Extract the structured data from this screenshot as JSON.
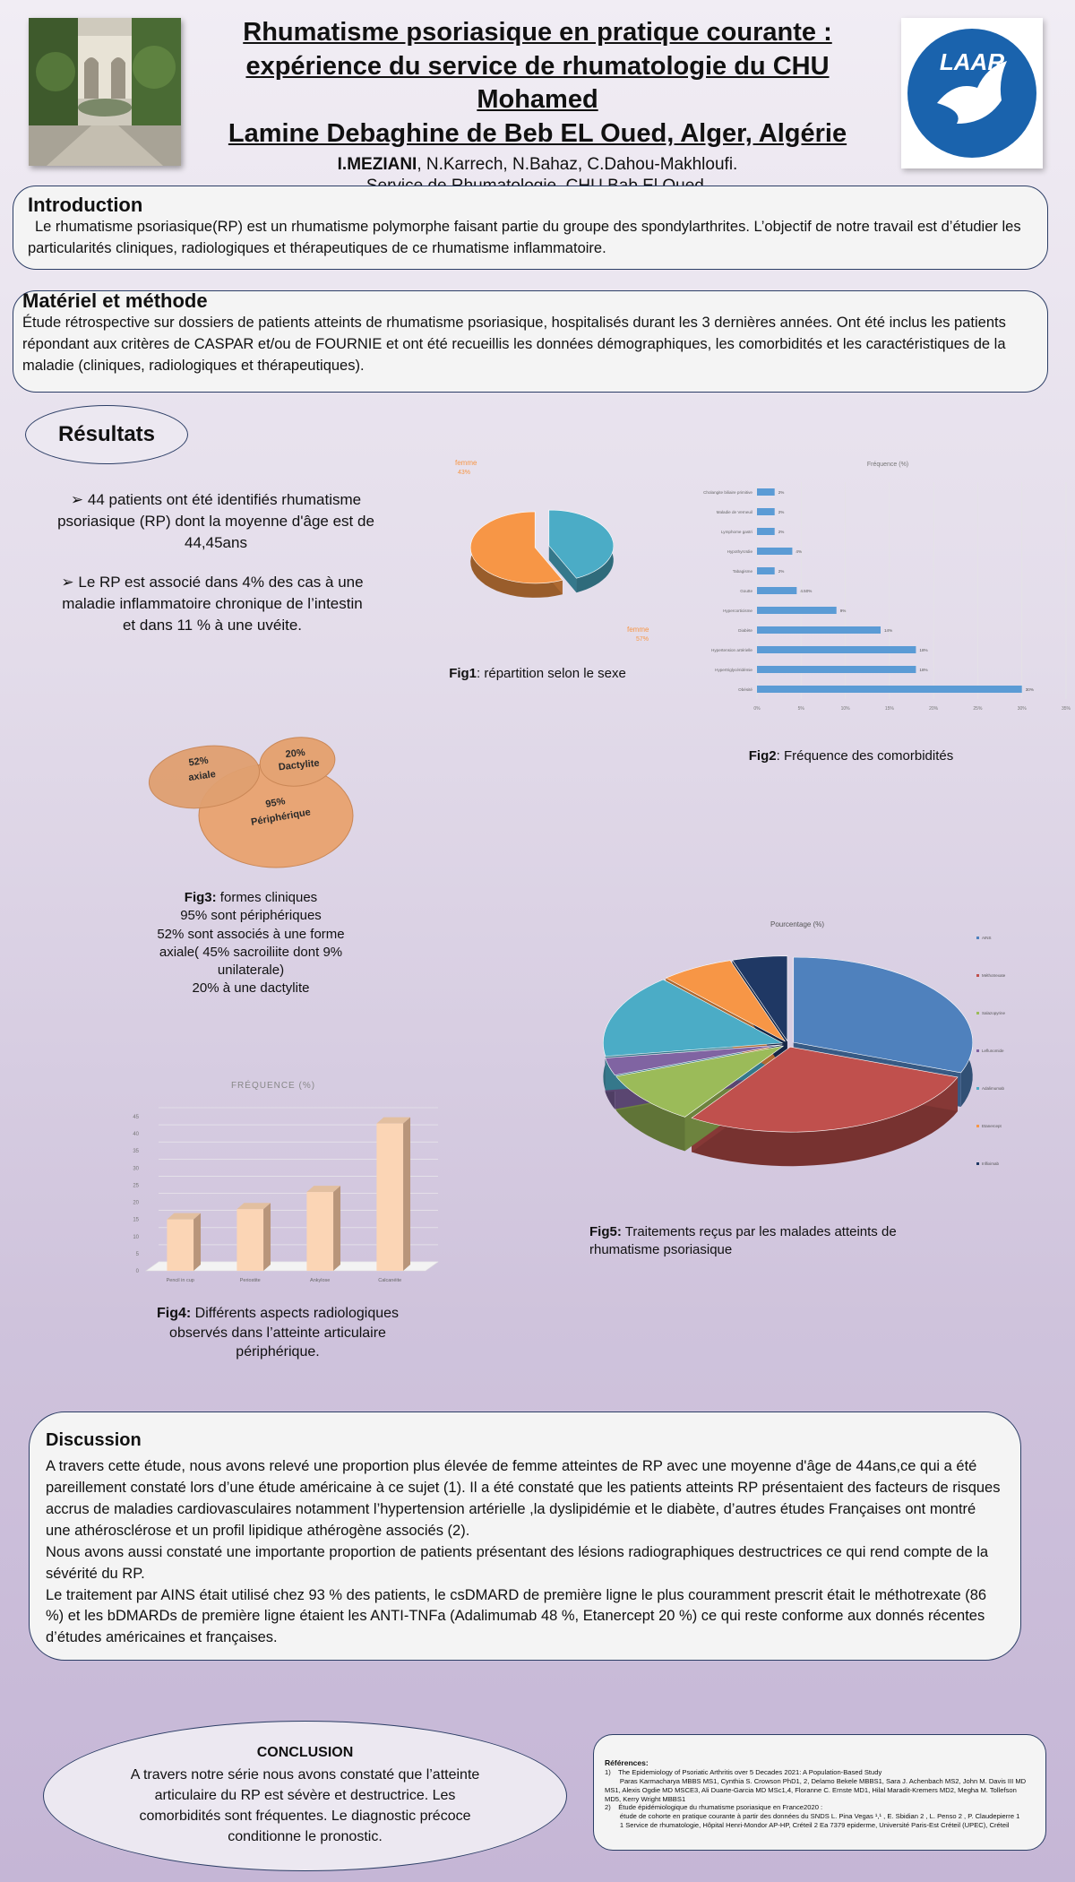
{
  "header": {
    "title_lines": [
      "Rhumatisme psoriasique en pratique courante :",
      "expérience du service de rhumatologie du CHU Mohamed",
      "Lamine Debaghine de Beb  EL Oued, Alger, Algérie"
    ],
    "first_author": "I.MEZIANI",
    "other_authors": ", N.Karrech, N.Bahaz, C.Dahou-Makhloufi.",
    "affiliation": "Service de Rhumatologie, CHU Bab El Oued.",
    "logo_text": "LAAR"
  },
  "introduction": {
    "title": "Introduction",
    "text": "Le rhumatisme psoriasique(RP) est un rhumatisme polymorphe faisant partie du groupe des spondylarthrites. L’objectif de notre travail est d’étudier les particularités cliniques, radiologiques et thérapeutiques de ce rhumatisme inflammatoire."
  },
  "methods": {
    "title": "Matériel et méthode",
    "text": "Étude rétrospective sur dossiers de patients atteints de rhumatisme psoriasique, hospitalisés durant les 3 dernières  années. Ont été inclus les patients répondant aux critères de CASPAR et/ou de FOURNIE et ont été recueillis les données démographiques, les comorbidités et les caractéristiques de la maladie (cliniques, radiologiques et thérapeutiques)."
  },
  "results": {
    "title": "Résultats",
    "bullet_1": "44 patients ont été identifiés rhumatisme psoriasique (RP)  dont la moyenne d'âge est de 44,45ans",
    "bullet_2": "Le RP est associé dans 4% des cas à une maladie inflammatoire chronique de l’intestin et dans 11 % à une uvéite."
  },
  "fig1": {
    "label_top": "femme",
    "label_top_value": "43%",
    "label_bottom": "femme",
    "label_bottom_value": "57%",
    "caption_bold": "Fig1",
    "caption_rest": ": répartition selon le sexe"
  },
  "fig2": {
    "caption_bold": "Fig2",
    "caption_rest": ": Fréquence des comorbidités"
  },
  "fig3": {
    "circles": [
      {
        "value": "52%",
        "label": "axiale"
      },
      {
        "value": "20%",
        "label": "Dactylite"
      },
      {
        "value": "95%",
        "label": "Périphérique"
      }
    ],
    "caption_bold": "Fig3:",
    "caption_rest": " formes cliniques",
    "caption_lines": [
      "95% sont périphériques",
      "52% sont associés à une forme",
      "axiale( 45% sacroiliite dont 9%",
      "unilaterale)",
      "20% à une dactylite"
    ]
  },
  "fig4": {
    "caption_bold": "Fig4:",
    "caption_rest": " Différents aspects radiologiques observés dans l’atteinte articulaire périphérique."
  },
  "fig5": {
    "caption_bold": "Fig5:",
    "caption_rest": " Traitements reçus par les malades atteints de rhumatisme psoriasique"
  },
  "discussion": {
    "title": "Discussion",
    "paragraphs": [
      " A travers cette étude, nous avons relevé une proportion plus élevée de femme atteintes de RP avec une moyenne d'âge de 44ans,ce qui a été pareillement constaté lors d’une étude américaine à ce sujet (1). Il a été constaté que les patients atteints RP présentaient des facteurs de risques accrus de maladies cardiovasculaires notamment l’hypertension artérielle ,la dyslipidémie et le diabète, d’autres études Françaises ont montré une athérosclérose et un profil lipidique athérogène associés (2).",
      "Nous avons aussi constaté une importante proportion de patients présentant des lésions radiographiques destructrices ce qui rend compte de la sévérité du RP.",
      "Le traitement par AINS était utilisé chez 93 % des patients, le csDMARD de première ligne le plus couramment prescrit était le méthotrexate (86 %) et les bDMARDs de première ligne étaient les ANTI-TNFa (Adalimumab 48 %, Etanercept 20 %) ce qui reste conforme aux donnés récentes d’études américaines et françaises."
    ]
  },
  "conclusion": {
    "title": "CONCLUSION",
    "text": "A travers notre série nous avons constaté que l’atteinte articulaire du RP est sévère et destructrice. Les comorbidités sont fréquentes. Le diagnostic précoce conditionne le pronostic."
  },
  "references": {
    "title": "Références:",
    "items": [
      "1)    The Epidemiology of Psoriatic Arthritis over 5 Decades 2021: A Population-Based Study",
      "        Paras Karmacharya MBBS MS1, Cynthia S. Crowson PhD1, 2, Delamo Bekele MBBS1, Sara J. Achenbach MS2, John M. Davis III MD MS1, Alexis Ogdie MD MSCE3, Ali Duarte-Garcia MD MSc1,4, Floranne C. Ernste MD1, Hilal Maradit-Kremers MD2, Megha M. Tollefson MD5, Kerry Wright MBBS1",
      "2)    Étude épidémiologique du rhumatisme psoriasique en France2020 :",
      "        étude de cohorte en pratique courante à partir des données du SNDS L. Pina Vegas ¹,¹ , E. Sbidian 2 , L. Penso 2 , P. Claudepierre 1",
      "        1 Service de rhumatologie, Hôpital Henri-Mondor AP-HP, Créteil 2 Ea 7379 epiderme, Université Paris-Est Créteil (UPEC), Créteil"
    ]
  },
  "chart_data": [
    {
      "type": "pie",
      "figure": "Fig1",
      "labels": [
        "femme",
        "femme"
      ],
      "values": [
        43,
        57
      ],
      "colors": [
        "#4bacc6",
        "#f79646"
      ]
    },
    {
      "type": "bar",
      "figure": "Fig2",
      "orientation": "horizontal",
      "title": "Fréquence (%)",
      "categories": [
        "Cholangite biliaire primitive",
        "Maladie de Verneuil",
        "Lymphome gastri",
        "Hypothyroïdie",
        "Tabagisme",
        "Goutte",
        "Hypercorticisme",
        "Diabète",
        "Hypertension artérielle",
        "Hypertriglycéridémie",
        "Obésité"
      ],
      "values": [
        2,
        2,
        2,
        4,
        2,
        4.5,
        9,
        14,
        18,
        18,
        30
      ],
      "data_labels": [
        "2%",
        "2%",
        "2%",
        "4%",
        "2%",
        "4.50%",
        "9%",
        "14%",
        "18%",
        "18%",
        "30%"
      ],
      "xticks": [
        "0%",
        "5%",
        "10%",
        "15%",
        "20%",
        "25%",
        "30%",
        "35%"
      ],
      "xlim": [
        0,
        35
      ],
      "color": "#5b9bd5"
    },
    {
      "type": "bar",
      "figure": "Fig4",
      "title": "FRÉQUENCE (%)",
      "categories": [
        "Pencil in cup",
        "Periostite",
        "Ankylose",
        "Calcanéite"
      ],
      "values": [
        15,
        18,
        23,
        43
      ],
      "yticks": [
        "0",
        "5",
        "10",
        "15",
        "20",
        "25",
        "30",
        "35",
        "40",
        "45"
      ],
      "ylim": [
        0,
        45
      ],
      "color": "#fbd5b5"
    },
    {
      "type": "pie",
      "figure": "Fig5",
      "title": "Pourcentage (%)",
      "labels": [
        "AINS",
        "Méthotrexate",
        "Salazopyrine",
        "Leflunomide",
        "Adalimumab",
        "Etanercept",
        "Infliximab"
      ],
      "values": [
        93,
        86,
        30,
        10,
        48,
        20,
        15
      ],
      "colors": [
        "#4f81bd",
        "#c0504d",
        "#9bbb59",
        "#8064a2",
        "#4bacc6",
        "#f79646",
        "#1f3864"
      ]
    }
  ]
}
